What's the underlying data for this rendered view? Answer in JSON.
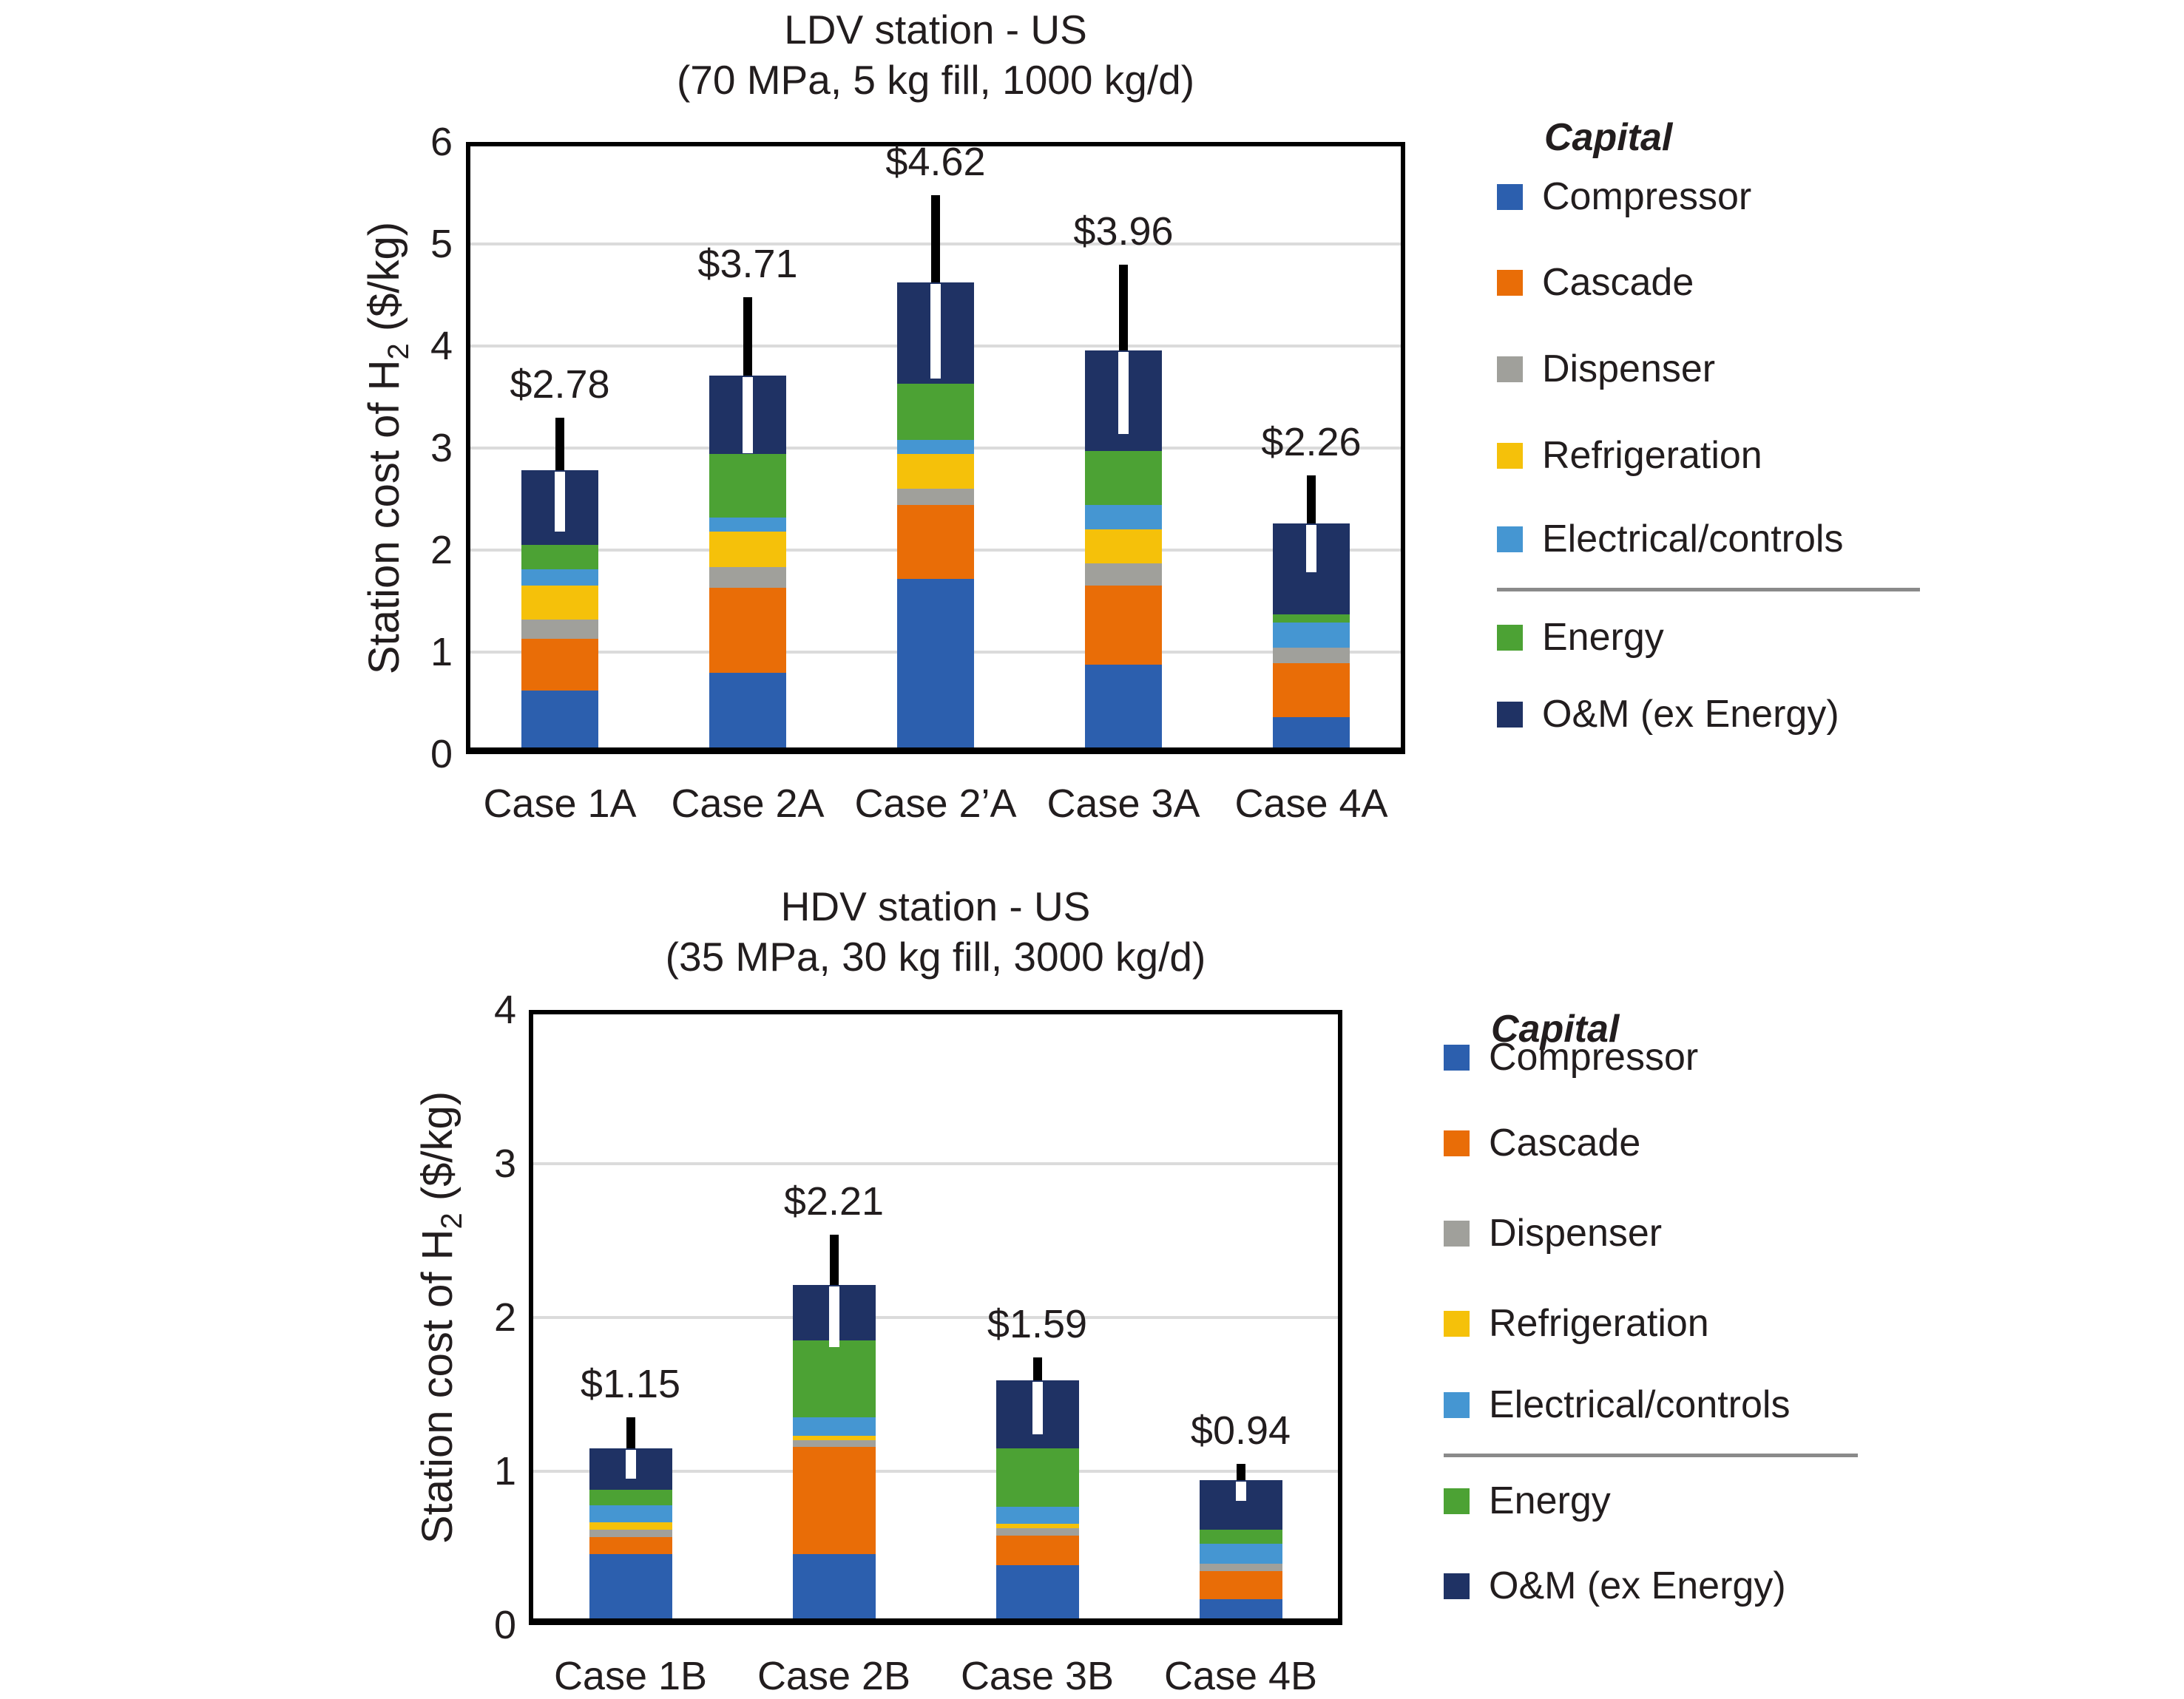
{
  "page": {
    "background": "#ffffff",
    "text_color": "#221d1e"
  },
  "colors": {
    "Compressor": "#2C5FAE",
    "Cascade": "#E96D07",
    "Dispenser": "#A0A09B",
    "Refrigeration": "#F5C10A",
    "Electrical/controls": "#4596D2",
    "Energy": "#4CA234",
    "O&M (ex Energy)": "#1F3264",
    "gridline": "#DBDBDB",
    "axis": "#000000",
    "error_bar_upper": "#000000",
    "error_bar_lower": "#FFFFFF",
    "legend_divider": "#8A8A8A"
  },
  "legend": {
    "title": "Capital",
    "items_capital": [
      {
        "label": "Compressor"
      },
      {
        "label": "Cascade"
      },
      {
        "label": "Dispenser"
      },
      {
        "label": "Refrigeration"
      },
      {
        "label": "Electrical/controls"
      }
    ],
    "items_other": [
      {
        "label": "Energy"
      },
      {
        "label": "O&M (ex Energy)"
      }
    ]
  },
  "chart_data": [
    {
      "id": "ldv",
      "type": "bar",
      "stacked": true,
      "title": "LDV station - US",
      "subtitle": "(70 MPa, 5 kg fill, 1000 kg/d)",
      "ylabel": "Station cost of H2 ($/kg)",
      "ylabel_pre": "Station cost of H",
      "ylabel_sub": "2",
      "ylabel_post": " ($/kg)",
      "ylim": [
        0,
        6
      ],
      "yticks": [
        0,
        1,
        2,
        3,
        4,
        5,
        6
      ],
      "grid": true,
      "legend_position": "right",
      "categories": [
        "Case 1A",
        "Case 2A",
        "Case 2’A",
        "Case 3A",
        "Case 4A"
      ],
      "totals_label": [
        "$2.78",
        "$3.71",
        "$4.62",
        "$3.96",
        "$2.26"
      ],
      "totals": [
        2.78,
        3.71,
        4.62,
        3.96,
        2.26
      ],
      "series": [
        {
          "name": "Compressor",
          "values": [
            0.62,
            0.8,
            1.72,
            0.88,
            0.36
          ]
        },
        {
          "name": "Cascade",
          "values": [
            0.51,
            0.83,
            0.72,
            0.77,
            0.53
          ]
        },
        {
          "name": "Dispenser",
          "values": [
            0.19,
            0.2,
            0.16,
            0.22,
            0.15
          ]
        },
        {
          "name": "Refrigeration",
          "values": [
            0.33,
            0.35,
            0.34,
            0.33,
            0.0
          ]
        },
        {
          "name": "Electrical/controls",
          "values": [
            0.16,
            0.14,
            0.14,
            0.24,
            0.25
          ]
        },
        {
          "name": "Energy",
          "values": [
            0.24,
            0.62,
            0.55,
            0.53,
            0.08
          ]
        },
        {
          "name": "O&M (ex Energy)",
          "values": [
            0.73,
            0.77,
            0.99,
            0.99,
            0.89
          ]
        }
      ],
      "error_low": [
        2.18,
        2.95,
        3.68,
        3.14,
        1.78
      ],
      "error_high": [
        3.3,
        4.48,
        5.48,
        4.8,
        2.73
      ]
    },
    {
      "id": "hdv",
      "type": "bar",
      "stacked": true,
      "title": "HDV station - US",
      "subtitle": "(35 MPa, 30 kg fill, 3000 kg/d)",
      "ylabel": "Station cost of H2 ($/kg)",
      "ylabel_pre": "Station cost of H",
      "ylabel_sub": "2",
      "ylabel_post": " ($/kg)",
      "ylim": [
        0,
        4
      ],
      "yticks": [
        0,
        1,
        2,
        3,
        4
      ],
      "grid": true,
      "legend_position": "right",
      "categories": [
        "Case 1B",
        "Case 2B",
        "Case 3B",
        "Case 4B"
      ],
      "totals_label": [
        "$1.15",
        "$2.21",
        "$1.59",
        "$0.94"
      ],
      "totals": [
        1.15,
        2.21,
        1.59,
        0.94
      ],
      "series": [
        {
          "name": "Compressor",
          "values": [
            0.46,
            0.46,
            0.39,
            0.17
          ]
        },
        {
          "name": "Cascade",
          "values": [
            0.11,
            0.7,
            0.19,
            0.18
          ]
        },
        {
          "name": "Dispenser",
          "values": [
            0.05,
            0.04,
            0.05,
            0.05
          ]
        },
        {
          "name": "Refrigeration",
          "values": [
            0.05,
            0.03,
            0.03,
            0.0
          ]
        },
        {
          "name": "Electrical/controls",
          "values": [
            0.11,
            0.12,
            0.11,
            0.13
          ]
        },
        {
          "name": "Energy",
          "values": [
            0.1,
            0.5,
            0.38,
            0.09
          ]
        },
        {
          "name": "O&M (ex Energy)",
          "values": [
            0.27,
            0.36,
            0.44,
            0.32
          ]
        }
      ],
      "error_low": [
        0.95,
        1.81,
        1.24,
        0.81
      ],
      "error_high": [
        1.35,
        2.54,
        1.74,
        1.05
      ]
    }
  ]
}
